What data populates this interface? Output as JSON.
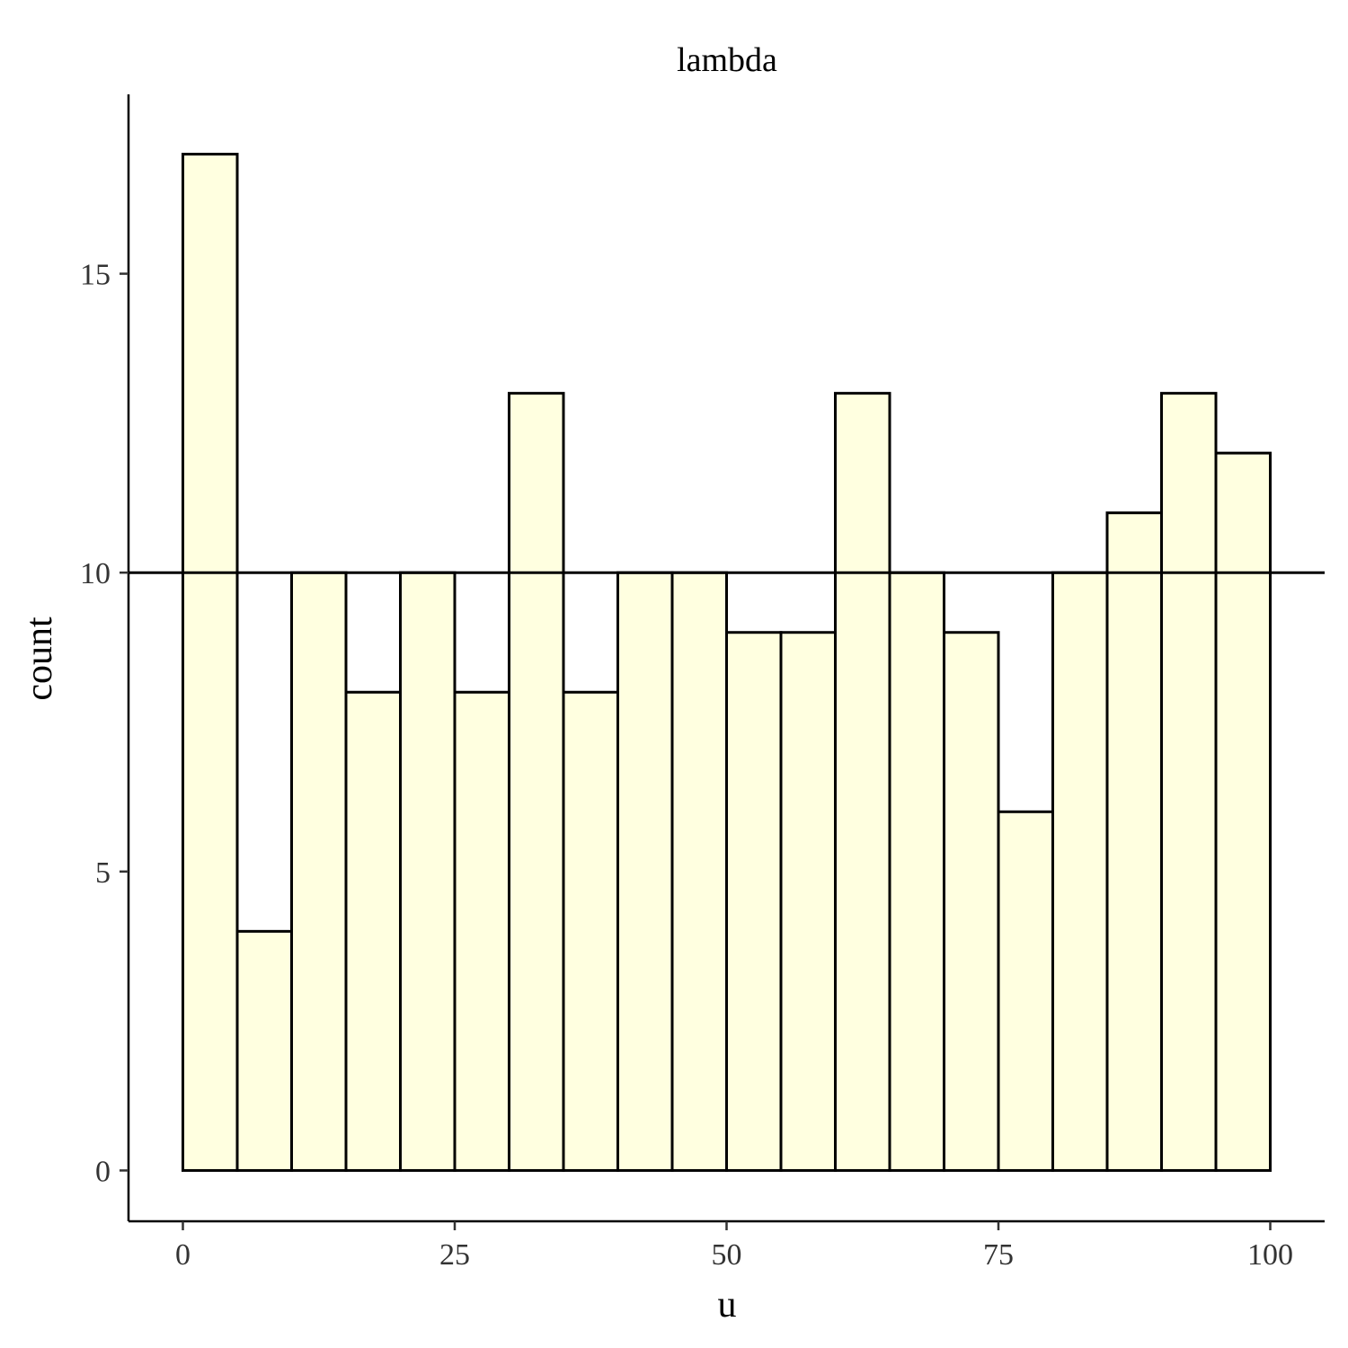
{
  "chart_data": {
    "type": "bar",
    "title": "lambda",
    "xlabel": "u",
    "ylabel": "count",
    "bin_width": 5,
    "bin_starts": [
      0,
      5,
      10,
      15,
      20,
      25,
      30,
      35,
      40,
      45,
      50,
      55,
      60,
      65,
      70,
      75,
      80,
      85,
      90,
      95
    ],
    "values": [
      17,
      4,
      10,
      8,
      10,
      8,
      13,
      8,
      10,
      10,
      9,
      9,
      13,
      10,
      9,
      6,
      10,
      11,
      13,
      12
    ],
    "reference_line_y": 10,
    "xlim": [
      -5,
      105
    ],
    "ylim": [
      -0.85,
      18
    ],
    "x_ticks": [
      0,
      25,
      50,
      75,
      100
    ],
    "x_tick_labels": [
      "0",
      "25",
      "50",
      "75",
      "100"
    ],
    "y_ticks": [
      0,
      5,
      10,
      15
    ],
    "y_tick_labels": [
      "0",
      "5",
      "10",
      "15"
    ],
    "bar_fill": "#FFFFE0",
    "bar_stroke": "#000000",
    "grid": false
  }
}
